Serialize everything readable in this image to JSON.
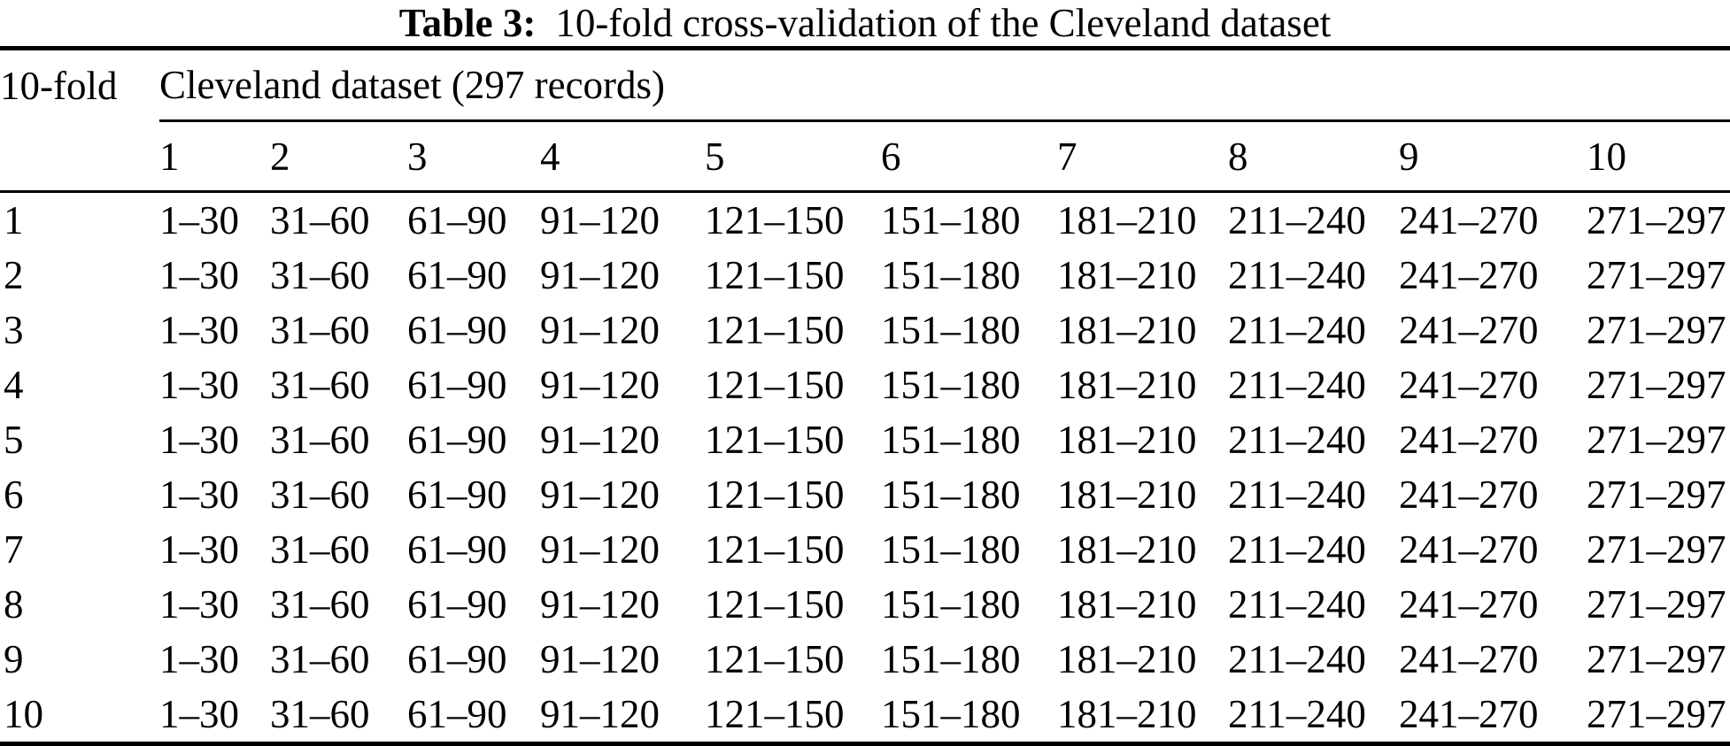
{
  "page": {
    "background": "#ffffff",
    "text_color": "#000000",
    "rule_color": "#000000"
  },
  "caption": {
    "label": "Table 3:",
    "text": "10-fold cross-validation of the Cleveland dataset"
  },
  "table": {
    "corner_header": "10-fold",
    "group_header": "Cleveland dataset (297 records)",
    "column_headers": [
      "1",
      "2",
      "3",
      "4",
      "5",
      "6",
      "7",
      "8",
      "9",
      "10"
    ],
    "rows": [
      {
        "label": "1",
        "bold_index": 0,
        "cells": [
          "1–30",
          "31–60",
          "61–90",
          "91–120",
          "121–150",
          "151–180",
          "181–210",
          "211–240",
          "241–270",
          "271–297"
        ]
      },
      {
        "label": "2",
        "bold_index": 1,
        "cells": [
          "1–30",
          "31–60",
          "61–90",
          "91–120",
          "121–150",
          "151–180",
          "181–210",
          "211–240",
          "241–270",
          "271–297"
        ]
      },
      {
        "label": "3",
        "bold_index": 2,
        "cells": [
          "1–30",
          "31–60",
          "61–90",
          "91–120",
          "121–150",
          "151–180",
          "181–210",
          "211–240",
          "241–270",
          "271–297"
        ]
      },
      {
        "label": "4",
        "bold_index": 3,
        "cells": [
          "1–30",
          "31–60",
          "61–90",
          "91–120",
          "121–150",
          "151–180",
          "181–210",
          "211–240",
          "241–270",
          "271–297"
        ]
      },
      {
        "label": "5",
        "bold_index": 4,
        "cells": [
          "1–30",
          "31–60",
          "61–90",
          "91–120",
          "121–150",
          "151–180",
          "181–210",
          "211–240",
          "241–270",
          "271–297"
        ]
      },
      {
        "label": "6",
        "bold_index": 5,
        "cells": [
          "1–30",
          "31–60",
          "61–90",
          "91–120",
          "121–150",
          "151–180",
          "181–210",
          "211–240",
          "241–270",
          "271–297"
        ]
      },
      {
        "label": "7",
        "bold_index": 6,
        "cells": [
          "1–30",
          "31–60",
          "61–90",
          "91–120",
          "121–150",
          "151–180",
          "181–210",
          "211–240",
          "241–270",
          "271–297"
        ]
      },
      {
        "label": "8",
        "bold_index": 7,
        "cells": [
          "1–30",
          "31–60",
          "61–90",
          "91–120",
          "121–150",
          "151–180",
          "181–210",
          "211–240",
          "241–270",
          "271–297"
        ]
      },
      {
        "label": "9",
        "bold_index": 8,
        "cells": [
          "1–30",
          "31–60",
          "61–90",
          "91–120",
          "121–150",
          "151–180",
          "181–210",
          "211–240",
          "241–270",
          "271–297"
        ]
      },
      {
        "label": "10",
        "bold_index": 9,
        "cells": [
          "1–30",
          "31–60",
          "61–90",
          "91–120",
          "121–150",
          "151–180",
          "181–210",
          "211–240",
          "241–270",
          "271–297"
        ]
      }
    ]
  }
}
